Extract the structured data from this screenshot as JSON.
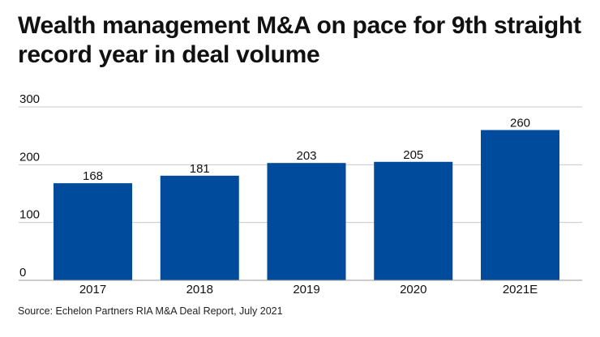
{
  "chart_data": {
    "type": "bar",
    "title": "Wealth management M&A on pace for 9th straight record year in deal volume",
    "categories": [
      "2017",
      "2018",
      "2019",
      "2020",
      "2021E"
    ],
    "values": [
      168,
      181,
      203,
      205,
      260
    ],
    "data_labels": [
      "168",
      "181",
      "203",
      "205",
      "260"
    ],
    "xlabel": "",
    "ylabel": "",
    "ylim": [
      0,
      300
    ],
    "yticks": [
      0,
      100,
      200,
      300
    ],
    "ytick_labels": [
      "0",
      "100",
      "200",
      "300"
    ],
    "grid": true,
    "legend": "none",
    "bar_color": "#004b9b",
    "grid_color": "#c8c8c8",
    "source": "Source: Echelon Partners RIA M&A Deal Report, July 2021"
  }
}
